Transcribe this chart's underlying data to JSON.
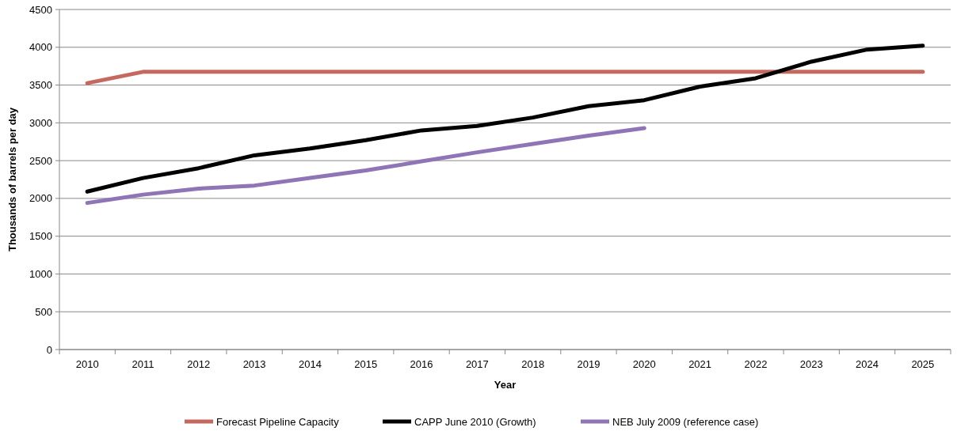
{
  "chart_data": {
    "type": "line",
    "xlabel": "Year",
    "ylabel": "Thousands of barrels per day",
    "categories": [
      "2010",
      "2011",
      "2012",
      "2013",
      "2014",
      "2015",
      "2016",
      "2017",
      "2018",
      "2019",
      "2020",
      "2021",
      "2022",
      "2023",
      "2024",
      "2025"
    ],
    "series": [
      {
        "name": "Forecast Pipeline Capacity",
        "color": "#c5685e",
        "values": [
          3525,
          3675,
          3675,
          3675,
          3675,
          3675,
          3675,
          3675,
          3675,
          3675,
          3675,
          3675,
          3675,
          3675,
          3675,
          3675
        ]
      },
      {
        "name": "CAPP June 2010 (Growth)",
        "color": "#000000",
        "values": [
          2090,
          2270,
          2400,
          2570,
          2660,
          2770,
          2900,
          2960,
          3070,
          3220,
          3300,
          3480,
          3590,
          3810,
          3970,
          4020
        ]
      },
      {
        "name": "NEB July 2009 (reference case)",
        "color": "#8f75b5",
        "values": [
          1940,
          2050,
          2130,
          2170,
          2270,
          2370,
          2490,
          2610,
          2720,
          2830,
          2930,
          null,
          null,
          null,
          null,
          null
        ]
      }
    ],
    "ylim": [
      0,
      4500
    ],
    "yticks": [
      0,
      500,
      1000,
      1500,
      2000,
      2500,
      3000,
      3500,
      4000,
      4500
    ],
    "grid": "y",
    "legend": "bottom",
    "marker": "none",
    "line_style": "solid"
  }
}
